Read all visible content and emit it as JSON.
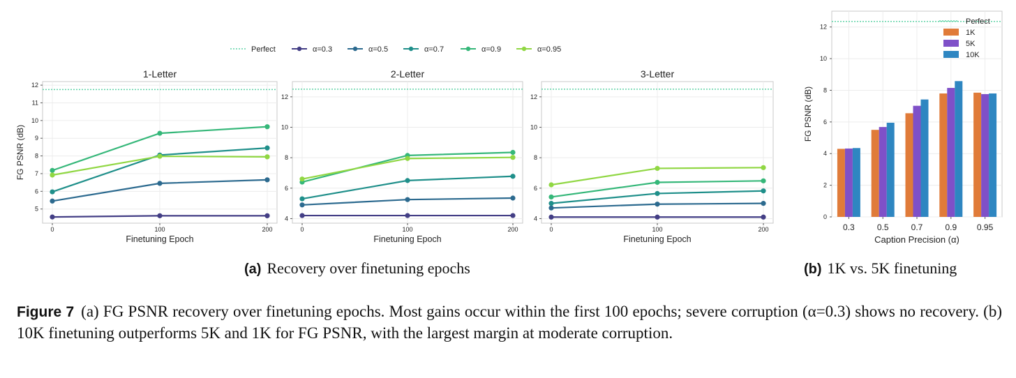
{
  "colors": {
    "perfect": "#5fd3a6",
    "a03": "#433e85",
    "a05": "#2c6a8f",
    "a07": "#1f8f8a",
    "a09": "#35b779",
    "a095": "#90d743",
    "k1": "#e07b39",
    "k5": "#7f50c8",
    "k10": "#2e86c1"
  },
  "legend_a": [
    {
      "label": "Perfect",
      "key": "perfect",
      "style": "dotted"
    },
    {
      "label": "α=0.3",
      "key": "a03",
      "style": "line"
    },
    {
      "label": "α=0.5",
      "key": "a05",
      "style": "line"
    },
    {
      "label": "α=0.7",
      "key": "a07",
      "style": "line"
    },
    {
      "label": "α=0.9",
      "key": "a09",
      "style": "line"
    },
    {
      "label": "α=0.95",
      "key": "a095",
      "style": "line"
    }
  ],
  "chart_data": [
    {
      "type": "line",
      "title": "1-Letter",
      "xlabel": "Finetuning Epoch",
      "ylabel": "FG PSNR (dB)",
      "x": [
        0,
        100,
        200
      ],
      "xticks": [
        0,
        100,
        200
      ],
      "ylim": [
        4.2,
        12.2
      ],
      "yticks": [
        5,
        6,
        7,
        8,
        9,
        10,
        11,
        12
      ],
      "perfect": 11.75,
      "grid": true,
      "series": [
        {
          "name": "α=0.3",
          "key": "a03",
          "values": [
            4.55,
            4.62,
            4.62
          ]
        },
        {
          "name": "α=0.5",
          "key": "a05",
          "values": [
            5.45,
            6.45,
            6.65
          ]
        },
        {
          "name": "α=0.7",
          "key": "a07",
          "values": [
            5.97,
            8.05,
            8.45
          ]
        },
        {
          "name": "α=0.9",
          "key": "a09",
          "values": [
            7.18,
            9.28,
            9.65
          ]
        },
        {
          "name": "α=0.95",
          "key": "a095",
          "values": [
            6.92,
            7.98,
            7.95
          ]
        }
      ]
    },
    {
      "type": "line",
      "title": "2-Letter",
      "xlabel": "Finetuning Epoch",
      "ylabel": "",
      "x": [
        0,
        100,
        200
      ],
      "xticks": [
        0,
        100,
        200
      ],
      "ylim": [
        3.7,
        13.0
      ],
      "yticks": [
        4,
        6,
        8,
        10,
        12
      ],
      "perfect": 12.5,
      "grid": true,
      "series": [
        {
          "name": "α=0.3",
          "key": "a03",
          "values": [
            4.2,
            4.2,
            4.2
          ]
        },
        {
          "name": "α=0.5",
          "key": "a05",
          "values": [
            4.9,
            5.25,
            5.35
          ]
        },
        {
          "name": "α=0.7",
          "key": "a07",
          "values": [
            5.3,
            6.5,
            6.78
          ]
        },
        {
          "name": "α=0.9",
          "key": "a09",
          "values": [
            6.4,
            8.15,
            8.35
          ]
        },
        {
          "name": "α=0.95",
          "key": "a095",
          "values": [
            6.6,
            7.95,
            8.02
          ]
        }
      ]
    },
    {
      "type": "line",
      "title": "3-Letter",
      "xlabel": "Finetuning Epoch",
      "ylabel": "",
      "x": [
        0,
        100,
        200
      ],
      "xticks": [
        0,
        100,
        200
      ],
      "ylim": [
        3.7,
        13.0
      ],
      "yticks": [
        4,
        6,
        8,
        10,
        12
      ],
      "perfect": 12.5,
      "grid": true,
      "series": [
        {
          "name": "α=0.3",
          "key": "a03",
          "values": [
            4.1,
            4.1,
            4.1
          ]
        },
        {
          "name": "α=0.5",
          "key": "a05",
          "values": [
            4.7,
            4.95,
            5.0
          ]
        },
        {
          "name": "α=0.7",
          "key": "a07",
          "values": [
            5.0,
            5.65,
            5.82
          ]
        },
        {
          "name": "α=0.9",
          "key": "a09",
          "values": [
            5.42,
            6.38,
            6.48
          ]
        },
        {
          "name": "α=0.95",
          "key": "a095",
          "values": [
            6.22,
            7.3,
            7.35
          ]
        }
      ]
    },
    {
      "type": "bar",
      "title": "",
      "xlabel": "Caption Precision (α)",
      "ylabel": "FG PSNR (dB)",
      "categories": [
        "0.3",
        "0.5",
        "0.7",
        "0.9",
        "0.95"
      ],
      "ylim": [
        0,
        13
      ],
      "yticks": [
        0,
        2,
        4,
        6,
        8,
        10,
        12
      ],
      "perfect": 12.35,
      "grid": true,
      "legend": "top-right",
      "series": [
        {
          "name": "1K",
          "key": "k1",
          "values": [
            4.3,
            5.5,
            6.55,
            7.8,
            7.85
          ]
        },
        {
          "name": "5K",
          "key": "k5",
          "values": [
            4.32,
            5.68,
            7.02,
            8.15,
            7.76
          ]
        },
        {
          "name": "10K",
          "key": "k10",
          "values": [
            4.35,
            5.95,
            7.42,
            8.58,
            7.8
          ]
        }
      ],
      "legend_items": [
        {
          "label": "Perfect",
          "key": "perfect",
          "style": "dotted"
        },
        {
          "label": "1K",
          "key": "k1",
          "style": "box"
        },
        {
          "label": "5K",
          "key": "k5",
          "style": "box"
        },
        {
          "label": "10K",
          "key": "k10",
          "style": "box"
        }
      ]
    }
  ],
  "captions": {
    "a_label": "(a)",
    "a_text": "Recovery over finetuning epochs",
    "b_label": "(b)",
    "b_text": "1K vs. 5K finetuning",
    "figure_label": "Figure 7",
    "figure_text": "(a) FG PSNR recovery over finetuning epochs. Most gains occur within the first 100 epochs; severe corruption (α=0.3) shows no recovery. (b) 10K finetuning outperforms 5K and 1K for FG PSNR, with the largest margin at moderate corruption."
  }
}
